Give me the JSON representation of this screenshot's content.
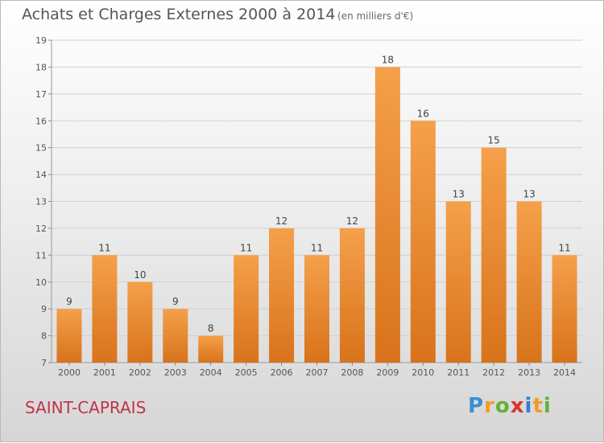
{
  "header": {
    "title": "Achats et Charges Externes 2000 à 2014",
    "subtitle": "(en milliers d'€)"
  },
  "footer": {
    "town": "SAINT-CAPRAIS",
    "brand": "Proxiti"
  },
  "colors": {
    "bar_top": "#f5a04a",
    "bar_bottom": "#d8731b",
    "grid": "#d0d0d0",
    "axis_text": "#555555"
  },
  "chart_data": {
    "type": "bar",
    "title": "Achats et Charges Externes 2000 à 2014",
    "subtitle": "(en milliers d'€)",
    "categories": [
      "2000",
      "2001",
      "2002",
      "2003",
      "2004",
      "2005",
      "2006",
      "2007",
      "2008",
      "2009",
      "2010",
      "2011",
      "2012",
      "2013",
      "2014"
    ],
    "values": [
      9,
      11,
      10,
      9,
      8,
      11,
      12,
      11,
      12,
      18,
      16,
      13,
      15,
      13,
      11
    ],
    "ylim": [
      7,
      19
    ],
    "yticks": [
      7,
      8,
      9,
      10,
      11,
      12,
      13,
      14,
      15,
      16,
      17,
      18,
      19
    ],
    "grid": true,
    "xlabel": "",
    "ylabel": ""
  }
}
